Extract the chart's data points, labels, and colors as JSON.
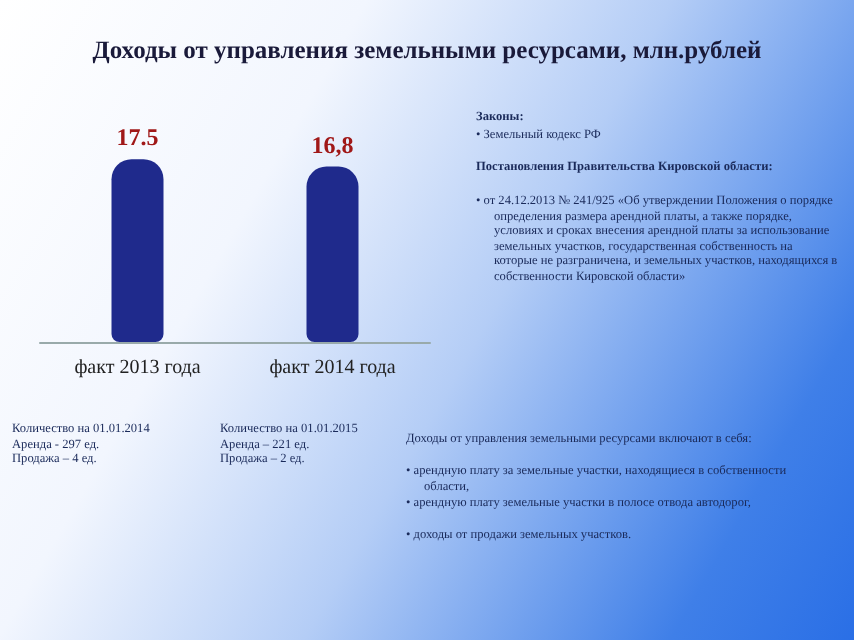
{
  "chart_data": {
    "type": "bar",
    "title": "Доходы от управления земельными ресурсами, млн.рублей",
    "categories": [
      "факт 2013 года",
      "факт 2014 года"
    ],
    "values": [
      17.5,
      16.8
    ],
    "color": "#1f2a8c",
    "value_labels": [
      "17.5",
      "16,8"
    ],
    "tick_labels": "x",
    "grid": false,
    "annotations": [
      "Законы:",
      "• Земельный кодекс РФ",
      "Постановления Правительства Кировской области:",
      "• от 24.12.2013 № 241/925 «Об утверждении Положения о порядке определения размера арендной платы, а также порядке, условиях и сроках внесения арендной платы за использование земельных участков, государственная собственность на которые не разграничена, и земельных участков, находящихся в собственности Кировской области»",
      "Количество на 01.01.2014\nАренда -  297 ед.\nПродажа – 4 ед.",
      "Количество на 01.01.2015\nАренда – 221 ед.\nПродажа – 2 ед.",
      "Доходы от управления земельными ресурсами включают в себя:",
      "• арендную плату за земельные участки, находящиеся в собственности области,",
      "•  арендную плату земельные участки в полосе отвода автодорог,",
      "•  доходы от продажи земельных участков."
    ]
  }
}
